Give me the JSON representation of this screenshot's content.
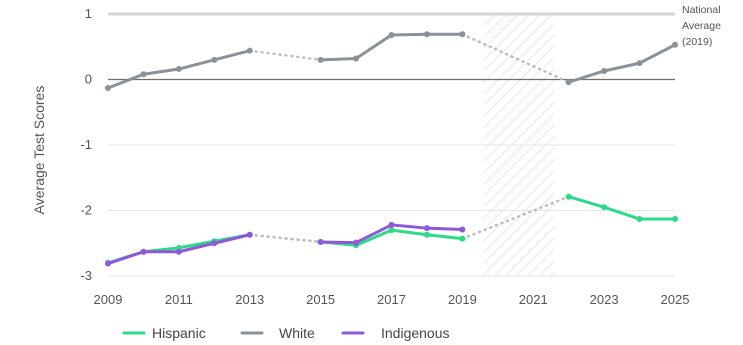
{
  "chart_data": {
    "type": "line",
    "title": "",
    "xlabel": "",
    "ylabel": "Average Test Scores",
    "xlim": [
      2009,
      2025
    ],
    "ylim": [
      -3,
      1
    ],
    "x_ticks": [
      "2009",
      "2011",
      "2013",
      "2015",
      "2017",
      "2019",
      "2021",
      "2023",
      "2025"
    ],
    "y_ticks": [
      "1",
      "0",
      "-1",
      "-2",
      "-3"
    ],
    "grid": "horizontal",
    "legend_position": "bottom",
    "gap_region": [
      2019.6,
      2021.6
    ],
    "reference_line": {
      "y": 1,
      "label": [
        "National",
        "Average",
        "(2019)"
      ]
    },
    "series": [
      {
        "name": "Hispanic",
        "color": "#2ED989",
        "values": [
          [
            2009,
            -2.8
          ],
          [
            2010,
            -2.63
          ],
          [
            2011,
            -2.57
          ],
          [
            2012,
            -2.47
          ],
          [
            2013,
            -2.37
          ],
          [
            2015,
            -2.48
          ],
          [
            2016,
            -2.53
          ],
          [
            2017,
            -2.3
          ],
          [
            2018,
            -2.37
          ],
          [
            2019,
            -2.43
          ],
          [
            2022,
            -1.79
          ],
          [
            2023,
            -1.95
          ],
          [
            2024,
            -2.13
          ],
          [
            2025,
            -2.13
          ]
        ]
      },
      {
        "name": "White",
        "color": "#8A9197",
        "values": [
          [
            2009,
            -0.13
          ],
          [
            2010,
            0.08
          ],
          [
            2011,
            0.16
          ],
          [
            2012,
            0.3
          ],
          [
            2013,
            0.44
          ],
          [
            2015,
            0.3
          ],
          [
            2016,
            0.32
          ],
          [
            2017,
            0.68
          ],
          [
            2018,
            0.69
          ],
          [
            2019,
            0.69
          ],
          [
            2022,
            -0.04
          ],
          [
            2023,
            0.13
          ],
          [
            2024,
            0.25
          ],
          [
            2025,
            0.53
          ]
        ]
      },
      {
        "name": "Indigenous",
        "color": "#8E59D6",
        "values": [
          [
            2009,
            -2.81
          ],
          [
            2010,
            -2.63
          ],
          [
            2011,
            -2.63
          ],
          [
            2012,
            -2.5
          ],
          [
            2013,
            -2.37
          ],
          [
            2015,
            -2.48
          ],
          [
            2016,
            -2.49
          ],
          [
            2017,
            -2.22
          ],
          [
            2018,
            -2.27
          ],
          [
            2019,
            -2.29
          ]
        ]
      }
    ]
  }
}
